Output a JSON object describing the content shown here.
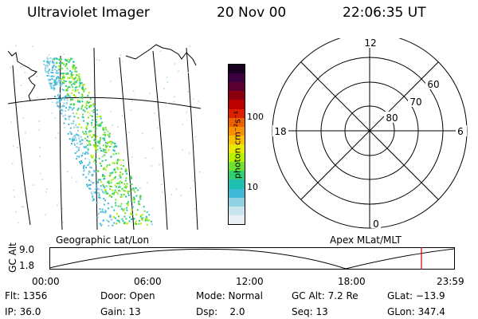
{
  "header": {
    "title": "Ultraviolet Imager",
    "date": "20 Nov 00",
    "time": "22:06:35 UT"
  },
  "colorbar": {
    "unit_label": "photon cm⁻²s⁻¹",
    "tick_100": "100",
    "tick_10": "10",
    "colors": [
      "#1a0020",
      "#3a0040",
      "#5a0030",
      "#8a0010",
      "#bb0000",
      "#dd2000",
      "#f06000",
      "#f89000",
      "#f8c000",
      "#e8e800",
      "#b8f000",
      "#70e030",
      "#30d070",
      "#20c0b0",
      "#40b8d8",
      "#90d0e0",
      "#c8e4ec",
      "#e8f0f4"
    ]
  },
  "map": {
    "caption": "Geographic Lat/Lon"
  },
  "polar": {
    "caption": "Apex MLat/MLT",
    "mlt_labels": {
      "top": "12",
      "bottom": "0",
      "left": "18",
      "right": "6"
    },
    "mlat_labels": [
      "60",
      "70",
      "80"
    ]
  },
  "orbit": {
    "y_label": "GC Alt",
    "y_max": "9.0",
    "y_min": "1.8",
    "x_ticks": [
      "00:00",
      "06:00",
      "12:00",
      "18:00",
      "23:59"
    ],
    "marker_color": "#d00000"
  },
  "info": {
    "flt": "Flt: 1356",
    "ip": "IP: 36.0",
    "door": "Door: Open",
    "gain": "Gain: 13",
    "mode": "Mode: Normal",
    "dsp": "Dsp:    2.0",
    "gcalt": "GC Alt: 7.2 Re",
    "seq": "Seq: 13",
    "glat": "GLat: −13.9",
    "glon": "GLon: 347.4"
  }
}
